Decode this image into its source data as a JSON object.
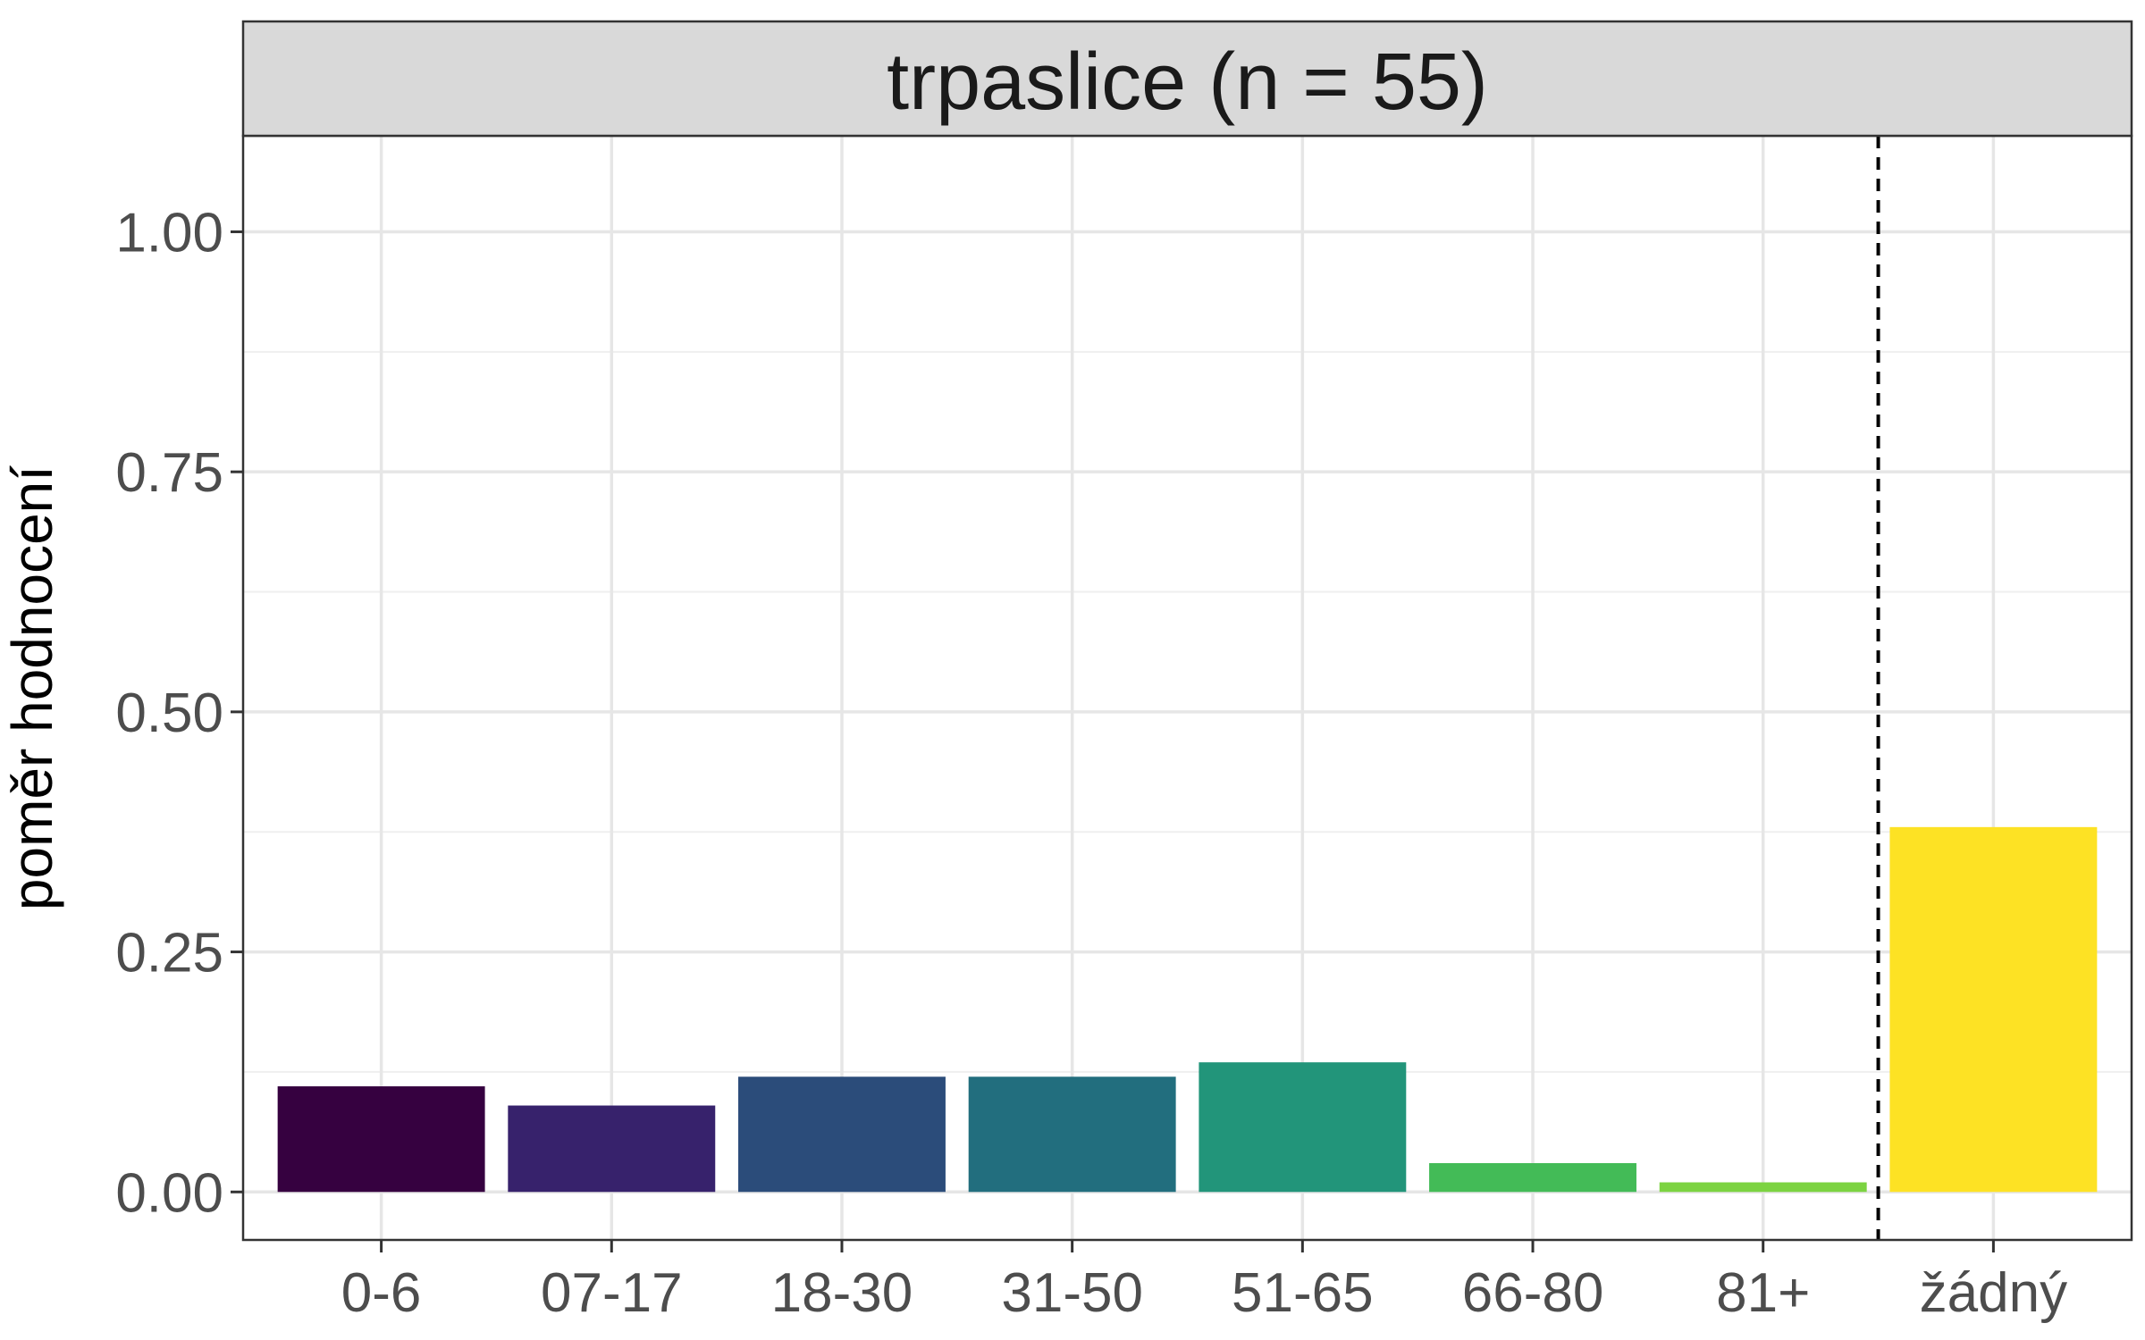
{
  "chart_data": {
    "type": "bar",
    "title": "trpaslice (n = 55)",
    "xlabel": "",
    "ylabel": "poměr hodnocení",
    "categories": [
      "0-6",
      "07-17",
      "18-30",
      "31-50",
      "51-65",
      "66-80",
      "81+",
      "žádný"
    ],
    "values": [
      0.11,
      0.09,
      0.12,
      0.12,
      0.135,
      0.03,
      0.01,
      0.38
    ],
    "colors": [
      "#360140",
      "#37226C",
      "#2B4C7A",
      "#226E7E",
      "#22957A",
      "#43BB57",
      "#7CD341",
      "#FDE224"
    ],
    "ylim": [
      -0.05,
      1.1
    ],
    "yticks": [
      0.0,
      0.25,
      0.5,
      0.75,
      1.0
    ],
    "ytick_labels": [
      "0.00",
      "0.25",
      "0.50",
      "0.75",
      "1.00"
    ],
    "separator_after_category": "81+",
    "separator_style": "dashed",
    "grid": true,
    "legend": "none"
  }
}
